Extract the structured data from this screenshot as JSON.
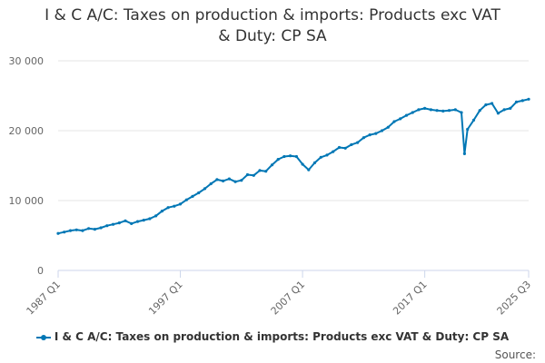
{
  "title_line1": "I & C A/C: Taxes on production & imports: Products exc VAT",
  "title_line2": "& Duty: CP SA",
  "legend": "I & C A/C: Taxes on production & imports: Products exc VAT & Duty: CP SA",
  "credits": "Source:",
  "chart_data": {
    "type": "line",
    "title": "I & C A/C: Taxes on production & imports: Products exc VAT & Duty: CP SA",
    "xlabel": "",
    "ylabel": "",
    "ylim": [
      0,
      30000
    ],
    "y_ticks": [
      0,
      10000,
      20000,
      30000
    ],
    "y_tick_labels": [
      "0",
      "10 000",
      "20 000",
      "30 000"
    ],
    "x_tick_labels": [
      "1987 Q1",
      "1997 Q1",
      "2007 Q1",
      "2017 Q1",
      "2025 Q3"
    ],
    "x_tick_years": [
      1987,
      1997,
      2007,
      2017,
      2025.5
    ],
    "x_range": [
      1987,
      2025.5
    ],
    "color": "#0077b5",
    "series": [
      {
        "name": "I & C A/C: Taxes on production & imports: Products exc VAT & Duty: CP SA",
        "x": [
          1987,
          1987.5,
          1988,
          1988.5,
          1989,
          1989.5,
          1990,
          1990.5,
          1991,
          1991.5,
          1992,
          1992.5,
          1993,
          1993.5,
          1994,
          1994.5,
          1995,
          1995.5,
          1996,
          1996.5,
          1997,
          1997.5,
          1998,
          1998.5,
          1999,
          1999.5,
          2000,
          2000.5,
          2001,
          2001.5,
          2002,
          2002.5,
          2003,
          2003.5,
          2004,
          2004.5,
          2005,
          2005.5,
          2006,
          2006.5,
          2007,
          2007.5,
          2008,
          2008.5,
          2009,
          2009.5,
          2010,
          2010.5,
          2011,
          2011.5,
          2012,
          2012.5,
          2013,
          2013.5,
          2014,
          2014.5,
          2015,
          2015.5,
          2016,
          2016.5,
          2017,
          2017.5,
          2018,
          2018.5,
          2019,
          2019.5,
          2020,
          2020.25,
          2020.5,
          2021,
          2021.5,
          2022,
          2022.5,
          2023,
          2023.5,
          2024,
          2024.5,
          2025,
          2025.5
        ],
        "values": [
          5300,
          5500,
          5700,
          5800,
          5700,
          6000,
          5900,
          6100,
          6400,
          6600,
          6800,
          7100,
          6700,
          7000,
          7200,
          7400,
          7800,
          8500,
          9000,
          9200,
          9500,
          10100,
          10600,
          11100,
          11700,
          12400,
          13000,
          12800,
          13100,
          12700,
          12900,
          13700,
          13600,
          14300,
          14200,
          15100,
          15900,
          16300,
          16400,
          16300,
          15200,
          14400,
          15400,
          16200,
          16500,
          17000,
          17600,
          17500,
          18000,
          18300,
          19000,
          19400,
          19600,
          20000,
          20500,
          21300,
          21700,
          22200,
          22600,
          23000,
          23200,
          23000,
          22900,
          22800,
          22900,
          23000,
          22600,
          16700,
          20200,
          21500,
          22900,
          23700,
          23900,
          22500,
          23000,
          23200,
          24100,
          24300,
          24500
        ]
      }
    ]
  }
}
